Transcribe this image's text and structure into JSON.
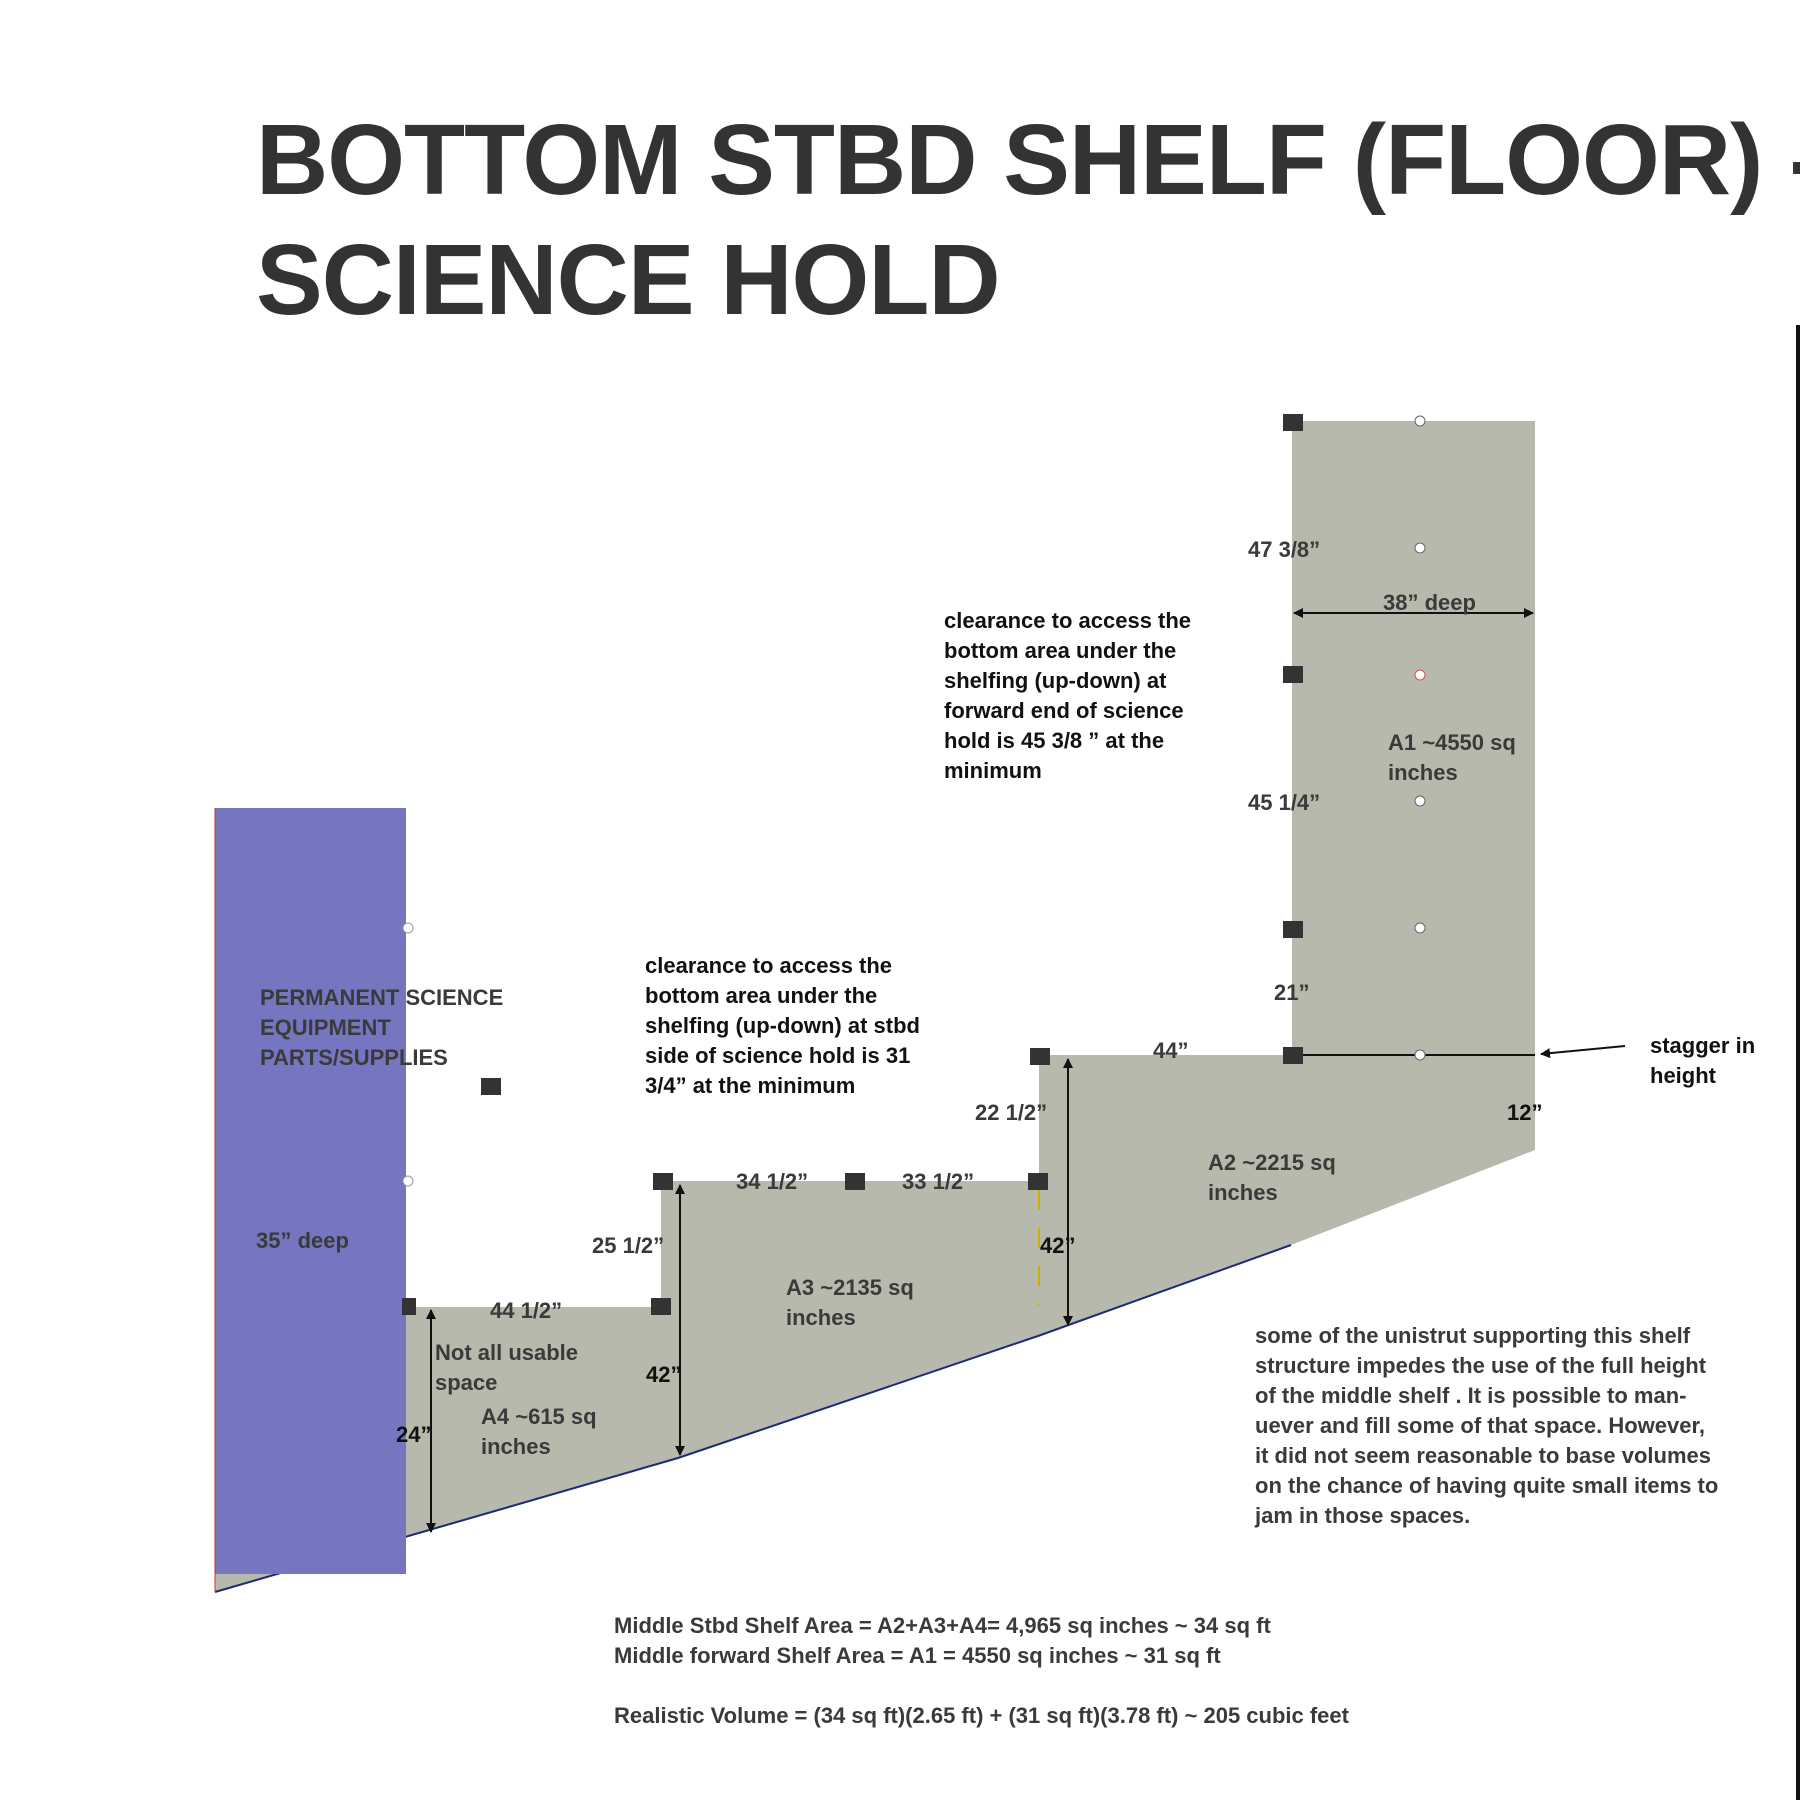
{
  "title": {
    "line1": "BOTTOM STBD SHELF  (FLOOR) -",
    "line2": "SCIENCE HOLD"
  },
  "colors": {
    "shelf_fill": "#b8b9ad",
    "equipment_fill": "#7676c0",
    "marker": "#333333",
    "text": "#333333",
    "edge_line": "#1c2a7a"
  },
  "equipment": {
    "label_line1": "PERMANENT SCIENCE",
    "label_line2": "EQUIPMENT",
    "label_line3": "PARTS/SUPPLIES",
    "depth": "35” deep"
  },
  "regions": {
    "a1": {
      "line1": "A1   ~4550 sq",
      "line2": "inches"
    },
    "a2": {
      "line1": "A2   ~2215 sq",
      "line2": "inches"
    },
    "a3": {
      "line1": "A3   ~2135 sq",
      "line2": "inches"
    },
    "a4": {
      "line1": "A4   ~615 sq",
      "line2": "inches"
    },
    "a4_note_line1": "Not all usable",
    "a4_note_line2": "space"
  },
  "dimensions": {
    "d_47_3_8": "47 3/8”",
    "d_38_deep": "38” deep",
    "d_45_1_4": "45 1/4”",
    "d_21": "21”",
    "d_44": "44”",
    "d_12": "12”",
    "d_22_1_2": "22 1/2”",
    "d_34_1_2": "34 1/2”",
    "d_33_1_2": "33 1/2”",
    "d_42_right": "42”",
    "d_25_1_2": "25 1/2”",
    "d_44_1_2": "44 1/2”",
    "d_42_left": "42”",
    "d_24": "24”"
  },
  "stagger": {
    "line1": "stagger in",
    "line2": "height"
  },
  "notes": {
    "forward_clearance": [
      "clearance to access the",
      "bottom area under the",
      "shelfing (up-down) at",
      "forward end of science",
      "hold is 45 3/8 ” at the",
      "minimum"
    ],
    "stbd_clearance": [
      "clearance to access the",
      "bottom area under the",
      "shelfing (up-down) at stbd",
      "side of science hold is 31",
      "3/4” at the minimum"
    ],
    "unistrut": [
      "some of the unistrut supporting this shelf",
      "structure impedes the use of the full height",
      "of the middle shelf .  It is possible to man-",
      "uever and fill some of that space.  However,",
      "it did not seem reasonable to base volumes",
      "on the chance of having quite small items to",
      "jam in those spaces."
    ]
  },
  "summary": {
    "line1": "Middle Stbd Shelf Area = A2+A3+A4= 4,965 sq inches  ~ 34 sq ft",
    "line2": "Middle forward Shelf Area = A1 = 4550 sq inches ~ 31 sq ft",
    "line3": "Realistic Volume = (34 sq ft)(2.65 ft) + (31 sq ft)(3.78 ft)  ~ 205 cubic feet"
  }
}
